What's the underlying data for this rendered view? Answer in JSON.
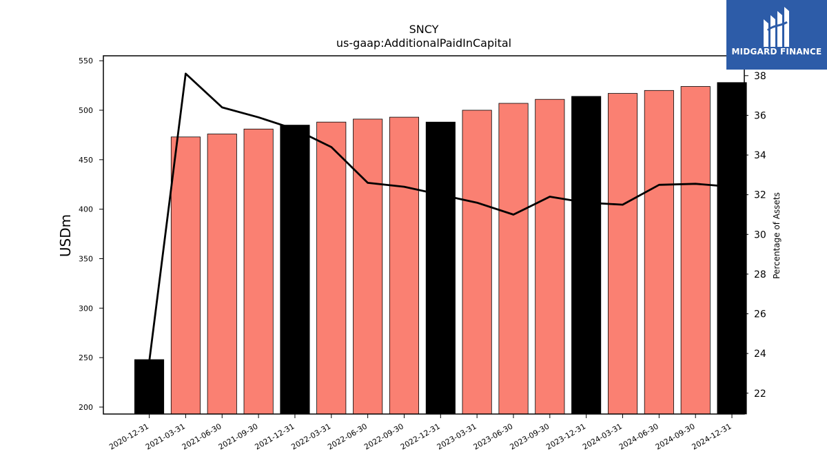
{
  "brand": {
    "name": "MIDGARD FINANCE",
    "logo_icon": "midgard-logo-icon",
    "background_color": "#2d5ca8"
  },
  "chart_data": {
    "type": "bar",
    "title": "SNCY",
    "subtitle": "us-gaap:AdditionalPaidInCapital",
    "ylabel": "USDm",
    "y2label": "Percentage of Assets",
    "categories": [
      "2020-12-31",
      "2021-03-31",
      "2021-06-30",
      "2021-09-30",
      "2021-12-31",
      "2022-03-31",
      "2022-06-30",
      "2022-09-30",
      "2022-12-31",
      "2023-03-31",
      "2023-06-30",
      "2023-09-30",
      "2023-12-31",
      "2024-03-31",
      "2024-06-30",
      "2024-09-30",
      "2024-12-31"
    ],
    "series": [
      {
        "kind": "bar",
        "axis": "left",
        "values": [
          248,
          473,
          476,
          481,
          485,
          488,
          491,
          493,
          488,
          500,
          507,
          511,
          514,
          517,
          520,
          524,
          528
        ],
        "colors": [
          "#000000",
          "#fa8072",
          "#fa8072",
          "#fa8072",
          "#000000",
          "#fa8072",
          "#fa8072",
          "#fa8072",
          "#000000",
          "#fa8072",
          "#fa8072",
          "#fa8072",
          "#000000",
          "#fa8072",
          "#fa8072",
          "#fa8072",
          "#000000"
        ]
      },
      {
        "kind": "line",
        "axis": "right",
        "color": "#000000",
        "values": [
          23.6,
          38.1,
          36.4,
          35.9,
          35.3,
          34.4,
          32.6,
          32.4,
          32.0,
          31.6,
          31.0,
          31.9,
          31.6,
          31.5,
          32.5,
          32.55,
          32.4
        ]
      }
    ],
    "ylim": [
      193,
      555
    ],
    "yticks": [
      200,
      250,
      300,
      350,
      400,
      450,
      500,
      550
    ],
    "y2lim": [
      20.95,
      39.0
    ],
    "y2ticks": [
      22,
      24,
      26,
      28,
      30,
      32,
      34,
      36,
      38
    ],
    "grid": false
  }
}
